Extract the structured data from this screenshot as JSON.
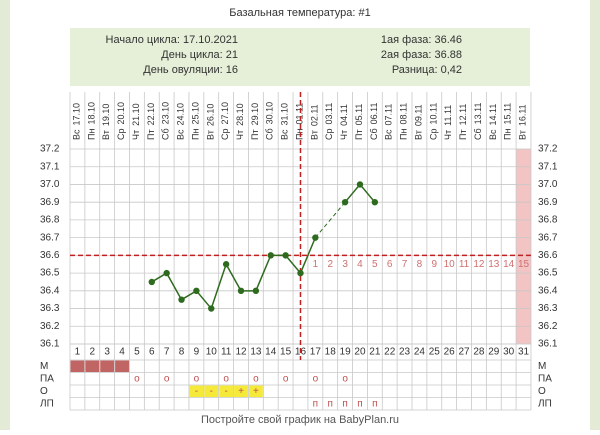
{
  "chart_data": {
    "type": "line",
    "title": "Базальная температура: #1",
    "info_left": [
      "Начало цикла: 17.10.2021",
      "День цикла: 21",
      "День овуляции: 16"
    ],
    "info_right": [
      "1ая фаза: 36.46",
      "2ая фаза: 36.88",
      "Разница: 0,42"
    ],
    "dates": [
      {
        "weekday": "Вс",
        "date": "17.10"
      },
      {
        "weekday": "Пн",
        "date": "18.10"
      },
      {
        "weekday": "Вт",
        "date": "19.10"
      },
      {
        "weekday": "Ср",
        "date": "20.10"
      },
      {
        "weekday": "Чт",
        "date": "21.10"
      },
      {
        "weekday": "Пт",
        "date": "22.10"
      },
      {
        "weekday": "Сб",
        "date": "23.10"
      },
      {
        "weekday": "Вс",
        "date": "24.10"
      },
      {
        "weekday": "Пн",
        "date": "25.10"
      },
      {
        "weekday": "Вт",
        "date": "26.10"
      },
      {
        "weekday": "Ср",
        "date": "27.10"
      },
      {
        "weekday": "Чт",
        "date": "28.10"
      },
      {
        "weekday": "Пт",
        "date": "29.10"
      },
      {
        "weekday": "Сб",
        "date": "30.10"
      },
      {
        "weekday": "Вс",
        "date": "31.10"
      },
      {
        "weekday": "Пн",
        "date": "01.11"
      },
      {
        "weekday": "Вт",
        "date": "02.11"
      },
      {
        "weekday": "Ср",
        "date": "03.11"
      },
      {
        "weekday": "Чт",
        "date": "04.11"
      },
      {
        "weekday": "Пт",
        "date": "05.11"
      },
      {
        "weekday": "Сб",
        "date": "06.11"
      },
      {
        "weekday": "Вс",
        "date": "07.11"
      },
      {
        "weekday": "Пн",
        "date": "08.11"
      },
      {
        "weekday": "Вт",
        "date": "09.11"
      },
      {
        "weekday": "Ср",
        "date": "10.11"
      },
      {
        "weekday": "Чт",
        "date": "11.11"
      },
      {
        "weekday": "Пт",
        "date": "12.11"
      },
      {
        "weekday": "Сб",
        "date": "13.11"
      },
      {
        "weekday": "Вс",
        "date": "14.11"
      },
      {
        "weekday": "Пн",
        "date": "15.11"
      },
      {
        "weekday": "Вт",
        "date": "16.11"
      }
    ],
    "x": [
      1,
      2,
      3,
      4,
      5,
      6,
      7,
      8,
      9,
      10,
      11,
      12,
      13,
      14,
      15,
      16,
      17,
      18,
      19,
      20,
      21,
      22,
      23,
      24,
      25,
      26,
      27,
      28,
      29,
      30,
      31
    ],
    "values": [
      null,
      null,
      null,
      null,
      null,
      36.45,
      36.5,
      36.35,
      36.4,
      36.3,
      36.55,
      36.4,
      36.4,
      36.6,
      36.6,
      36.5,
      36.7,
      null,
      36.9,
      37.0,
      36.9,
      null,
      null,
      null,
      null,
      null,
      null,
      null,
      null,
      null,
      null
    ],
    "color": "#2e6b1f",
    "ylim": [
      36.1,
      37.2
    ],
    "yticks": [
      {
        "value": 37.2,
        "label": "37.2"
      },
      {
        "value": 37.1,
        "label": "37.1"
      },
      {
        "value": 37.0,
        "label": "37.0"
      },
      {
        "value": 36.9,
        "label": "36.9"
      },
      {
        "value": 36.8,
        "label": "36.8"
      },
      {
        "value": 36.7,
        "label": "36.7"
      },
      {
        "value": 36.6,
        "label": "36.6"
      },
      {
        "value": 36.5,
        "label": "36.5"
      },
      {
        "value": 36.4,
        "label": "36.4"
      },
      {
        "value": 36.3,
        "label": "36.3"
      },
      {
        "value": 36.2,
        "label": "36.2"
      },
      {
        "value": 36.1,
        "label": "36.1"
      }
    ],
    "grid": true,
    "coverline": 36.6,
    "ovulation_day": 16,
    "phase2_days": [
      1,
      2,
      3,
      4,
      5,
      6,
      7,
      8,
      9,
      10,
      11,
      12,
      13,
      14,
      15
    ],
    "highlight_day": 31,
    "rows": [
      {
        "label": "М",
        "fill": [
          1,
          2,
          3,
          4
        ]
      },
      {
        "label": "ПА",
        "cells": [
          null,
          null,
          null,
          null,
          "o",
          null,
          "o",
          null,
          "o",
          null,
          "o",
          null,
          "o",
          null,
          "o",
          null,
          "o",
          null,
          "o",
          null,
          null,
          null,
          null,
          null,
          null,
          null,
          null,
          null,
          null,
          null,
          null
        ]
      },
      {
        "label": "О",
        "cells": [
          null,
          null,
          null,
          null,
          null,
          null,
          null,
          null,
          "-",
          "-",
          "-",
          "+",
          "+",
          null,
          null,
          null,
          null,
          null,
          null,
          null,
          null,
          null,
          null,
          null,
          null,
          null,
          null,
          null,
          null,
          null,
          null
        ]
      },
      {
        "label": "ЛП",
        "cells": [
          null,
          null,
          null,
          null,
          null,
          null,
          null,
          null,
          null,
          null,
          null,
          null,
          null,
          null,
          null,
          null,
          "п",
          "п",
          "п",
          "п",
          "п",
          null,
          null,
          null,
          null,
          null,
          null,
          null,
          null,
          null,
          null
        ]
      }
    ],
    "footer": "Постройте свой график на BabyPlan.ru"
  }
}
